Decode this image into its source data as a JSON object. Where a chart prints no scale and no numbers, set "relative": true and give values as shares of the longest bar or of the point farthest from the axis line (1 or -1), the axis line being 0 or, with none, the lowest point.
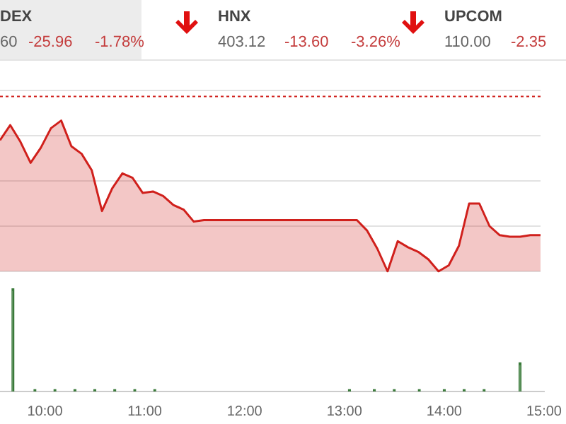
{
  "chart_data": [
    {
      "type": "area",
      "relative": true,
      "annotations": [
        "DEX",
        "60",
        "-25.96",
        "-1.78%",
        "HNX",
        "403.12",
        "-13.60",
        "-3.26%",
        "UPCOM",
        "110.00",
        "-2.35"
      ],
      "tick_labels": false,
      "grid": "y",
      "legend": false,
      "ref_lines": [
        {
          "axis": "y",
          "value": 1.16,
          "color": "#d0201c",
          "line_style": "dotted"
        }
      ],
      "categories": [
        null,
        null,
        null,
        null,
        null,
        null,
        null,
        null,
        null,
        null,
        null,
        null,
        null,
        null,
        null,
        null,
        null,
        null,
        null,
        null,
        null,
        null,
        null,
        null,
        null,
        null,
        null,
        null,
        null,
        null,
        null,
        null,
        null,
        null,
        null,
        null,
        null,
        null,
        null,
        null,
        null,
        null,
        null,
        null,
        null,
        null,
        null,
        null,
        null,
        null,
        null,
        null,
        null,
        null
      ],
      "series": [
        {
          "color": "#d0201c",
          "values": [
            0.87,
            0.97,
            0.86,
            0.72,
            0.82,
            0.95,
            1,
            0.83,
            0.78,
            0.67,
            0.4,
            0.55,
            0.65,
            0.62,
            0.52,
            0.53,
            0.5,
            0.44,
            0.41,
            0.33,
            0.34,
            0.34,
            0.34,
            0.34,
            0.34,
            0.34,
            0.34,
            0.34,
            0.34,
            0.34,
            0.34,
            0.34,
            0.34,
            0.34,
            0.34,
            0.34,
            0.27,
            0.15,
            0,
            0.2,
            0.16,
            0.13,
            0.08,
            0,
            0.04,
            0.17,
            0.45,
            0.45,
            0.3,
            0.24,
            0.23,
            0.23,
            0.24,
            0.24
          ]
        }
      ]
    },
    {
      "type": "bar",
      "relative": true,
      "xlim": [
        9.55,
        15
      ],
      "tick_labels": "x",
      "legend": false,
      "xticks": [
        {
          "value": 10,
          "label": "10:00"
        },
        {
          "value": 11,
          "label": "11:00"
        },
        {
          "value": 12,
          "label": "12:00"
        },
        {
          "value": 13,
          "label": "13:00"
        },
        {
          "value": 14,
          "label": "14:00"
        },
        {
          "value": 15,
          "label": "15:00"
        }
      ],
      "series": [
        {
          "color": "#3a7a3a",
          "x": [
            9.68,
            9.9,
            10.1,
            10.3,
            10.5,
            10.7,
            10.9,
            11.1,
            13.05,
            13.3,
            13.5,
            13.75,
            14.0,
            14.2,
            14.4,
            14.76
          ],
          "values": [
            1,
            0.02,
            0.02,
            0.02,
            0.02,
            0.02,
            0.02,
            0.02,
            0.02,
            0.02,
            0.02,
            0.02,
            0.02,
            0.02,
            0.02,
            0.28
          ]
        }
      ]
    }
  ]
}
